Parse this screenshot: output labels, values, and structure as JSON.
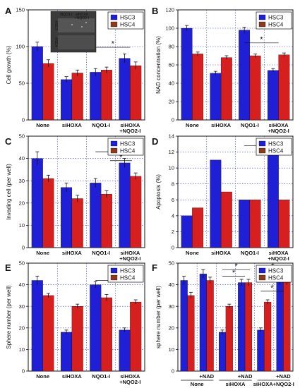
{
  "chart_data": [
    {
      "panel": "A",
      "type": "bar",
      "ylabel": "Cell growth (%)",
      "ylim": [
        0,
        150
      ],
      "yticks": [
        0,
        50,
        100,
        150
      ],
      "categories": [
        "None",
        "siHOXA",
        "NQO1-I",
        "siHOXA\n+NQO2-I"
      ],
      "series": [
        {
          "name": "HSC3",
          "values": [
            100,
            55,
            65,
            84
          ],
          "errors": [
            6,
            4,
            5,
            6
          ]
        },
        {
          "name": "HSC4",
          "values": [
            77,
            64,
            68,
            74
          ],
          "errors": [
            5,
            4,
            4,
            5
          ]
        }
      ],
      "inset": {
        "columns": [
          "NQO1-I",
          "siHOXA\n+NQO2-I"
        ],
        "rows": [
          "HSC3",
          "HSC4"
        ]
      },
      "significance": [
        {
          "from": 2,
          "to": 3,
          "y": 99,
          "mark": "*"
        }
      ]
    },
    {
      "panel": "B",
      "type": "bar",
      "ylabel": "NAD concentration (%)",
      "ylim": [
        0,
        120
      ],
      "yticks": [
        0,
        20,
        40,
        60,
        80,
        100,
        120
      ],
      "categories": [
        "None",
        "siHOXA",
        "NQO1-I",
        "siHOXA\n+NQO2-I"
      ],
      "series": [
        {
          "name": "HSC3",
          "values": [
            100,
            51,
            98,
            54
          ],
          "errors": [
            3,
            2,
            3,
            2
          ]
        },
        {
          "name": "HSC4",
          "values": [
            72,
            68,
            70,
            71
          ],
          "errors": [
            2,
            2,
            2,
            2
          ]
        }
      ],
      "significance": [
        {
          "from": 2,
          "to": 3,
          "y": 84,
          "mark": "*"
        }
      ]
    },
    {
      "panel": "C",
      "type": "bar",
      "ylabel": "Invading cell (per well)",
      "ylim": [
        0,
        50
      ],
      "yticks": [
        0,
        10,
        20,
        30,
        40,
        50
      ],
      "categories": [
        "None",
        "siHOXA",
        "NQO1-I",
        "siHOXA\n+NQO2-I"
      ],
      "series": [
        {
          "name": "HSC3",
          "values": [
            40,
            27,
            29,
            38
          ],
          "errors": [
            3,
            2,
            2,
            2
          ]
        },
        {
          "name": "HSC4",
          "values": [
            31,
            22,
            24,
            32
          ],
          "errors": [
            1.5,
            1.5,
            1.5,
            1.5
          ]
        }
      ],
      "significance": [
        {
          "from": 2,
          "to": 3,
          "y": 43,
          "mark": "*"
        },
        {
          "from": 2.5,
          "to": 3.2,
          "y": 39,
          "mark": "*"
        }
      ]
    },
    {
      "panel": "D",
      "type": "bar",
      "ylabel": "Apoptosis (%)",
      "ylim": [
        0,
        14
      ],
      "yticks": [
        0,
        2,
        4,
        6,
        8,
        10,
        12,
        14
      ],
      "categories": [
        "None",
        "siHOXA",
        "NQO1-I",
        "siHOXA\n+NQO2-I"
      ],
      "series": [
        {
          "name": "HSC3",
          "values": [
            4,
            11,
            6,
            12
          ]
        },
        {
          "name": "HSC4",
          "values": [
            5,
            7,
            6,
            6
          ]
        }
      ],
      "significance": [
        {
          "from": 2,
          "to": 3,
          "y": 12.8,
          "mark": "*"
        }
      ]
    },
    {
      "panel": "E",
      "type": "bar",
      "ylabel": "Sphere number (per well)",
      "ylim": [
        0,
        50
      ],
      "yticks": [
        0,
        10,
        20,
        30,
        40,
        50
      ],
      "categories": [
        "None",
        "siHOXA",
        "NQO1-I",
        "siHOXA\n+NQO2-I"
      ],
      "series": [
        {
          "name": "HSC3",
          "values": [
            42,
            18,
            40,
            19
          ],
          "errors": [
            2,
            1,
            1.5,
            1
          ]
        },
        {
          "name": "HSC4",
          "values": [
            35,
            30,
            34,
            32
          ],
          "errors": [
            1,
            1,
            1.5,
            1
          ]
        }
      ],
      "significance": [
        {
          "from": 2,
          "to": 3,
          "y": 42,
          "mark": "*"
        }
      ]
    },
    {
      "panel": "F",
      "type": "bar",
      "ylabel": "sphere number (per well)",
      "ylim": [
        0,
        50
      ],
      "yticks": [
        0,
        10,
        20,
        30,
        40,
        50
      ],
      "categories": [
        "",
        "+NAD",
        "",
        "+NAD",
        "",
        "+NAD"
      ],
      "groups": [
        "None",
        "siHOXA",
        "siHOXA+NQO2-I"
      ],
      "series": [
        {
          "name": "HSC3",
          "values": [
            42,
            45,
            18,
            41,
            19,
            42
          ],
          "errors": [
            2,
            2,
            1,
            1.5,
            1,
            2
          ]
        },
        {
          "name": "HSC4",
          "values": [
            35,
            42,
            30,
            41,
            32,
            42
          ],
          "errors": [
            1.5,
            1.5,
            1,
            1.5,
            1,
            2
          ]
        }
      ],
      "significance": [
        {
          "from": 2,
          "to": 3,
          "y": 44,
          "mark": "*"
        },
        {
          "from": 2,
          "to": 3.2,
          "y": 47,
          "mark": "*"
        },
        {
          "from": 4,
          "to": 5,
          "y": 37,
          "mark": "*"
        },
        {
          "from": 4,
          "to": 5.2,
          "y": 47,
          "mark": "*"
        }
      ]
    }
  ],
  "colors": {
    "HSC3": "#1f1fd6",
    "HSC4": "#d61f1f",
    "HSC4_legend": "#8b3a1a",
    "grid": "#3a3ad6"
  }
}
